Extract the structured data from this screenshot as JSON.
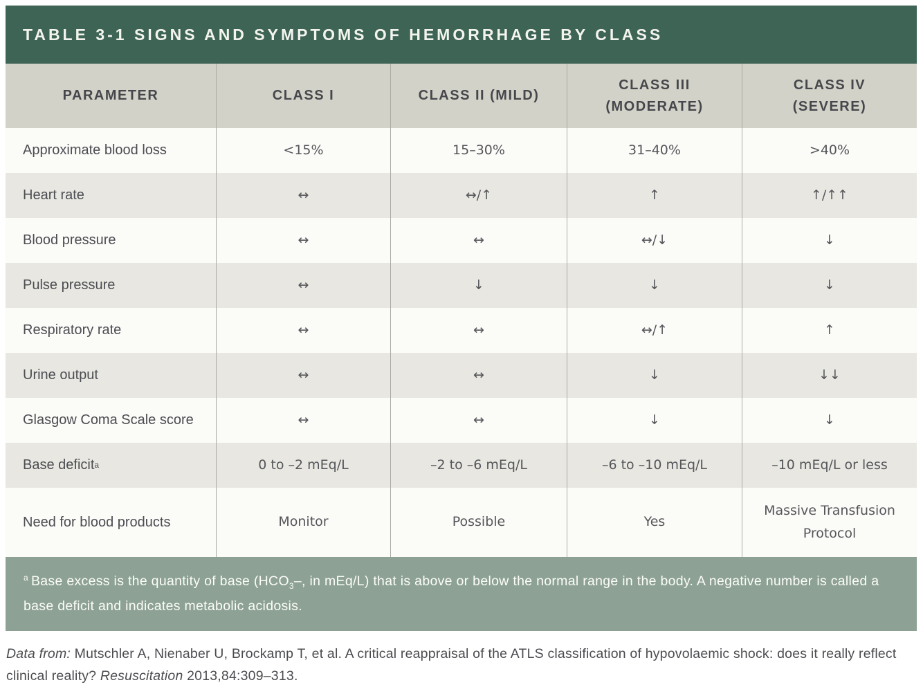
{
  "title": "TABLE 3-1 SIGNS AND SYMPTOMS OF HEMORRHAGE BY CLASS",
  "colors": {
    "title_bar_green": "#3d6454",
    "header_gray": "#d3d2c8",
    "stripe_gray": "#e8e7e1",
    "stripe_white": "#fbfbf8",
    "footnote_green": "#8da295",
    "divider_gray": "#abaaa4",
    "text_gray": "#4c4d52"
  },
  "table": {
    "headers": [
      "PARAMETER",
      "CLASS I",
      "CLASS II (MILD)",
      "CLASS III (MODERATE)",
      "CLASS IV (SEVERE)"
    ],
    "rows": [
      {
        "parameter": "Approximate blood loss",
        "values": [
          "<15%",
          "15–30%",
          "31–40%",
          ">40%"
        ]
      },
      {
        "parameter": "Heart rate",
        "values": [
          "↔",
          "↔/↑",
          "↑",
          "↑/↑↑"
        ]
      },
      {
        "parameter": "Blood pressure",
        "values": [
          "↔",
          "↔",
          "↔/↓",
          "↓"
        ]
      },
      {
        "parameter": "Pulse pressure",
        "values": [
          "↔",
          "↓",
          "↓",
          "↓"
        ]
      },
      {
        "parameter": "Respiratory rate",
        "values": [
          "↔",
          "↔",
          "↔/↑",
          "↑"
        ]
      },
      {
        "parameter": "Urine output",
        "values": [
          "↔",
          "↔",
          "↓",
          "↓↓"
        ]
      },
      {
        "parameter": "Glasgow Coma Scale score",
        "values": [
          "↔",
          "↔",
          "↓",
          "↓"
        ]
      },
      {
        "parameter": "Base deficit",
        "parameter_sup": "a",
        "values": [
          "0 to –2 mEq/L",
          "–2 to –6 mEq/L",
          "–6 to –10 mEq/L",
          "–10 mEq/L or less"
        ]
      },
      {
        "parameter": "Need for blood products",
        "values": [
          "Monitor",
          "Possible",
          "Yes",
          "Massive Transfusion Protocol"
        ]
      }
    ]
  },
  "footnote": {
    "marker": "a",
    "part1": "Base excess is the quantity of base (HCO",
    "sub": "3",
    "part2": "–, in mEq/L) that is above or below the normal range in the body. A negative number is called a base deficit and indicates metabolic acidosis."
  },
  "citation": {
    "lead_italic": "Data from:",
    "body": " Mutschler A, Nienaber U, Brockamp T, et al. A critical reappraisal of the ATLS classification of hypovolaemic shock: does it really reflect clinical reality? ",
    "journal_italic": "Resuscitation",
    "tail": " 2013,84:309–313."
  }
}
